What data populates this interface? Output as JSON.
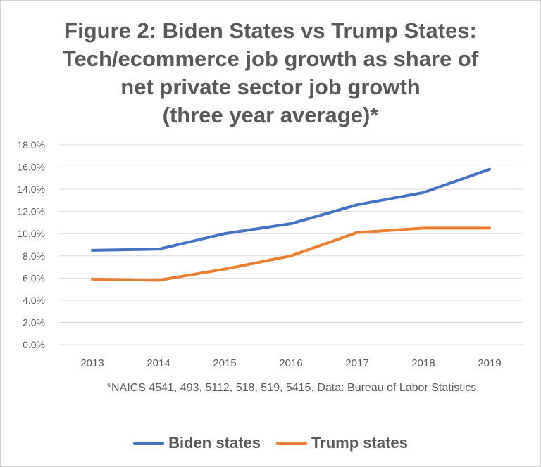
{
  "chart_data": {
    "type": "line",
    "title_lines": [
      "Figure 2: Biden States vs Trump States:",
      "Tech/ecommerce job growth as share of",
      "net private sector job growth",
      "(three year average)*"
    ],
    "x": [
      "2013",
      "2014",
      "2015",
      "2016",
      "2017",
      "2018",
      "2019"
    ],
    "y_ticks": [
      "0.0%",
      "2.0%",
      "4.0%",
      "6.0%",
      "8.0%",
      "10.0%",
      "12.0%",
      "14.0%",
      "16.0%",
      "18.0%"
    ],
    "ylim": [
      0,
      18
    ],
    "grid": true,
    "legend_position": "bottom",
    "series": [
      {
        "name": "Biden states",
        "color": "#4472C4",
        "values": [
          8.5,
          8.6,
          10.0,
          10.9,
          12.6,
          13.7,
          15.8
        ]
      },
      {
        "name": "Trump states",
        "color": "#ED7D31",
        "values": [
          5.9,
          5.8,
          6.8,
          8.0,
          10.1,
          10.5,
          10.5
        ]
      }
    ],
    "footnote": "*NAICS 4541, 493, 5112, 518, 519, 5415. Data: Bureau of Labor Statistics"
  }
}
